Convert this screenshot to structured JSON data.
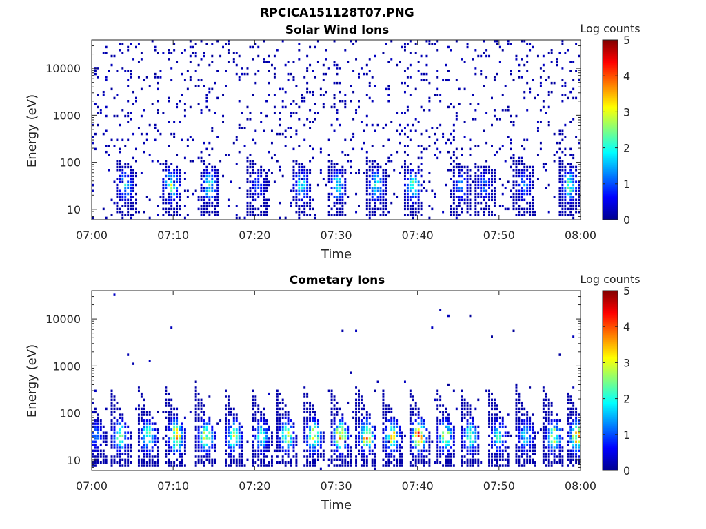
{
  "figure": {
    "filename_title": "RPCICA151128T07.PNG"
  },
  "colormap": {
    "name": "jet",
    "stops": [
      "#00008f",
      "#0000ff",
      "#0080ff",
      "#00ffff",
      "#80ff80",
      "#ffff00",
      "#ff8000",
      "#ff0000",
      "#800000"
    ]
  },
  "chart_data": [
    {
      "type": "heatmap",
      "title": "Solar Wind Ions",
      "xlabel": "Time",
      "ylabel": "Energy (eV)",
      "x_range": [
        "07:00",
        "08:00"
      ],
      "y_scale": "log",
      "y_range": [
        6,
        40000
      ],
      "x_ticks": [
        "07:00",
        "07:10",
        "07:20",
        "07:30",
        "07:40",
        "07:50",
        "08:00"
      ],
      "y_ticks": [
        "10",
        "100",
        "1000",
        "10000"
      ],
      "y_tick_values": [
        10,
        100,
        1000,
        10000
      ],
      "colorbar": {
        "label": "Log counts",
        "min": 0,
        "max": 5,
        "ticks": [
          "0",
          "1",
          "2",
          "3",
          "4",
          "5"
        ]
      },
      "sweep_minutes": [
        4.2,
        9.8,
        14.5,
        20.4,
        25.8,
        30.2,
        35.0,
        39.5,
        45.4,
        48.2,
        53.1,
        58.7
      ],
      "sweep_peak_log_counts": [
        1.8,
        2.6,
        2.2,
        1.0,
        2.0,
        2.1,
        2.1,
        2.5,
        1.4,
        1.2,
        1.3,
        2.4
      ],
      "background_log_counts": 0.1,
      "grid": false
    },
    {
      "type": "heatmap",
      "title": "Cometary Ions",
      "xlabel": "Time",
      "ylabel": "Energy (eV)",
      "x_range": [
        "07:00",
        "08:00"
      ],
      "y_scale": "log",
      "y_range": [
        6,
        40000
      ],
      "x_ticks": [
        "07:00",
        "07:10",
        "07:20",
        "07:30",
        "07:40",
        "07:50",
        "08:00"
      ],
      "y_ticks": [
        "10",
        "100",
        "1000",
        "10000"
      ],
      "y_tick_values": [
        10,
        100,
        1000,
        10000
      ],
      "colorbar": {
        "label": "Log counts",
        "min": 0,
        "max": 5,
        "ticks": [
          "0",
          "1",
          "2",
          "3",
          "4",
          "5"
        ]
      },
      "sweep_minutes": [
        0.6,
        3.6,
        7.0,
        10.4,
        14.1,
        17.5,
        20.9,
        24.0,
        27.3,
        30.6,
        33.8,
        36.9,
        40.2,
        43.5,
        46.5,
        50.0,
        53.3,
        56.8,
        59.6
      ],
      "sweep_peak_log_counts": [
        1.2,
        2.6,
        2.8,
        3.6,
        3.4,
        3.0,
        2.2,
        2.9,
        3.3,
        3.9,
        3.7,
        3.4,
        4.2,
        2.9,
        2.6,
        2.1,
        2.0,
        3.0,
        3.6
      ],
      "background_log_counts": 0.05,
      "grid": false
    }
  ]
}
